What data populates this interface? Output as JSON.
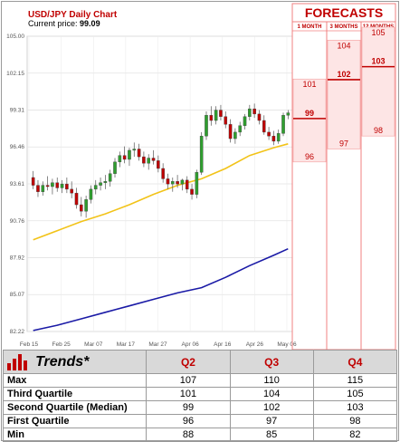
{
  "chart_data": {
    "type": "candlestick",
    "title": "USD/JPY Daily Chart",
    "current_price_label": "Current price:",
    "current_price": "99.09",
    "y_ticks": [
      "105.00",
      "102.15",
      "99.31",
      "96.46",
      "93.61",
      "90.76",
      "87.92",
      "85.07",
      "82.22"
    ],
    "x_ticks": [
      "Feb 15",
      "Feb 25",
      "Mar 07",
      "Mar 17",
      "Mar 27",
      "Apr 06",
      "Apr 16",
      "Apr 26",
      "May 06"
    ],
    "ylim": [
      82.22,
      105.0
    ],
    "candles": [
      [
        94.1,
        94.6,
        93.2,
        93.5
      ],
      [
        93.5,
        93.9,
        92.6,
        93.0
      ],
      [
        93.0,
        93.8,
        92.7,
        93.5
      ],
      [
        93.5,
        94.2,
        93.1,
        93.4
      ],
      [
        93.4,
        94.0,
        92.8,
        93.7
      ],
      [
        93.7,
        94.1,
        93.0,
        93.3
      ],
      [
        93.3,
        93.9,
        92.9,
        93.6
      ],
      [
        93.6,
        94.1,
        92.9,
        93.2
      ],
      [
        93.2,
        93.8,
        92.5,
        92.9
      ],
      [
        92.9,
        93.3,
        91.7,
        92.0
      ],
      [
        92.0,
        92.6,
        91.1,
        91.5
      ],
      [
        91.5,
        92.7,
        91.0,
        92.4
      ],
      [
        92.4,
        93.5,
        92.1,
        93.2
      ],
      [
        93.2,
        93.9,
        92.8,
        93.5
      ],
      [
        93.5,
        94.1,
        93.1,
        93.7
      ],
      [
        93.7,
        94.3,
        93.2,
        93.8
      ],
      [
        93.8,
        94.7,
        93.4,
        94.4
      ],
      [
        94.4,
        95.6,
        94.1,
        95.3
      ],
      [
        95.3,
        96.1,
        94.9,
        95.8
      ],
      [
        95.8,
        96.5,
        95.2,
        95.5
      ],
      [
        95.5,
        96.4,
        95.0,
        96.2
      ],
      [
        96.2,
        96.8,
        95.7,
        96.3
      ],
      [
        96.3,
        96.7,
        95.4,
        95.7
      ],
      [
        95.7,
        96.1,
        94.9,
        95.2
      ],
      [
        95.2,
        95.9,
        94.7,
        95.6
      ],
      [
        95.6,
        96.2,
        95.1,
        95.4
      ],
      [
        95.4,
        95.8,
        94.5,
        94.8
      ],
      [
        94.8,
        95.2,
        93.7,
        94.0
      ],
      [
        94.0,
        94.4,
        93.2,
        93.6
      ],
      [
        93.6,
        94.1,
        93.0,
        93.8
      ],
      [
        93.8,
        94.3,
        93.3,
        93.6
      ],
      [
        93.6,
        94.0,
        93.1,
        93.9
      ],
      [
        93.9,
        94.2,
        92.9,
        93.2
      ],
      [
        93.2,
        93.6,
        92.4,
        92.8
      ],
      [
        92.8,
        94.7,
        92.5,
        94.5
      ],
      [
        94.5,
        97.6,
        94.3,
        97.3
      ],
      [
        97.3,
        99.2,
        97.0,
        98.9
      ],
      [
        98.9,
        99.6,
        98.1,
        98.5
      ],
      [
        98.5,
        99.6,
        98.2,
        99.3
      ],
      [
        99.3,
        99.7,
        98.5,
        98.8
      ],
      [
        98.8,
        99.2,
        97.9,
        98.2
      ],
      [
        98.2,
        98.6,
        96.8,
        97.1
      ],
      [
        97.1,
        97.9,
        96.7,
        97.6
      ],
      [
        97.6,
        98.4,
        97.3,
        98.1
      ],
      [
        98.1,
        99.0,
        97.8,
        98.8
      ],
      [
        98.8,
        99.7,
        98.5,
        99.4
      ],
      [
        99.4,
        99.8,
        98.7,
        99.0
      ],
      [
        99.0,
        99.3,
        98.2,
        98.5
      ],
      [
        98.5,
        98.9,
        97.4,
        97.6
      ],
      [
        97.6,
        98.0,
        97.0,
        97.3
      ],
      [
        97.3,
        97.7,
        96.6,
        96.9
      ],
      [
        96.9,
        97.8,
        96.7,
        97.5
      ],
      [
        97.5,
        99.1,
        97.3,
        98.9
      ],
      [
        98.9,
        99.3,
        98.6,
        99.09
      ]
    ],
    "ma_50": [
      [
        0,
        89.3
      ],
      [
        5,
        90.0
      ],
      [
        10,
        90.7
      ],
      [
        15,
        91.3
      ],
      [
        20,
        92.0
      ],
      [
        25,
        92.8
      ],
      [
        30,
        93.5
      ],
      [
        35,
        94.0
      ],
      [
        40,
        94.8
      ],
      [
        45,
        95.8
      ],
      [
        50,
        96.4
      ],
      [
        53,
        96.7
      ]
    ],
    "ma_200": [
      [
        0,
        82.3
      ],
      [
        5,
        82.7
      ],
      [
        10,
        83.2
      ],
      [
        15,
        83.7
      ],
      [
        20,
        84.2
      ],
      [
        25,
        84.7
      ],
      [
        30,
        85.2
      ],
      [
        35,
        85.6
      ],
      [
        40,
        86.4
      ],
      [
        45,
        87.3
      ],
      [
        50,
        88.1
      ],
      [
        53,
        88.6
      ]
    ]
  },
  "forecasts": {
    "title": "FORECASTS",
    "columns": [
      {
        "label": "1 MONTH",
        "high": "101",
        "median": "99",
        "low": "96",
        "high_v": 101,
        "median_v": 99,
        "low_v": 96
      },
      {
        "label": "3 MONTHS",
        "high": "104",
        "median": "102",
        "low": "97",
        "high_v": 104,
        "median_v": 102,
        "low_v": 97
      },
      {
        "label": "12 MONTHS",
        "high": "105",
        "median": "103",
        "low": "98",
        "high_v": 105,
        "median_v": 103,
        "low_v": 98
      }
    ]
  },
  "trends": {
    "title": "Trends*",
    "quarters": [
      "Q2",
      "Q3",
      "Q4"
    ],
    "rows": [
      {
        "label": "Max",
        "values": [
          "107",
          "110",
          "115"
        ]
      },
      {
        "label": "Third Quartile",
        "values": [
          "101",
          "104",
          "105"
        ]
      },
      {
        "label": "Second Quartile (Median)",
        "values": [
          "99",
          "102",
          "103"
        ]
      },
      {
        "label": "First Quartile",
        "values": [
          "96",
          "97",
          "98"
        ]
      },
      {
        "label": "Min",
        "values": [
          "88",
          "85",
          "82"
        ]
      }
    ]
  },
  "colors": {
    "up": "#2e9e2e",
    "down": "#c00000",
    "ma_short": "#f2c318",
    "ma_long": "#1a1aa6",
    "forecast_fill": "#fde5e5",
    "accent": "#c00000"
  }
}
